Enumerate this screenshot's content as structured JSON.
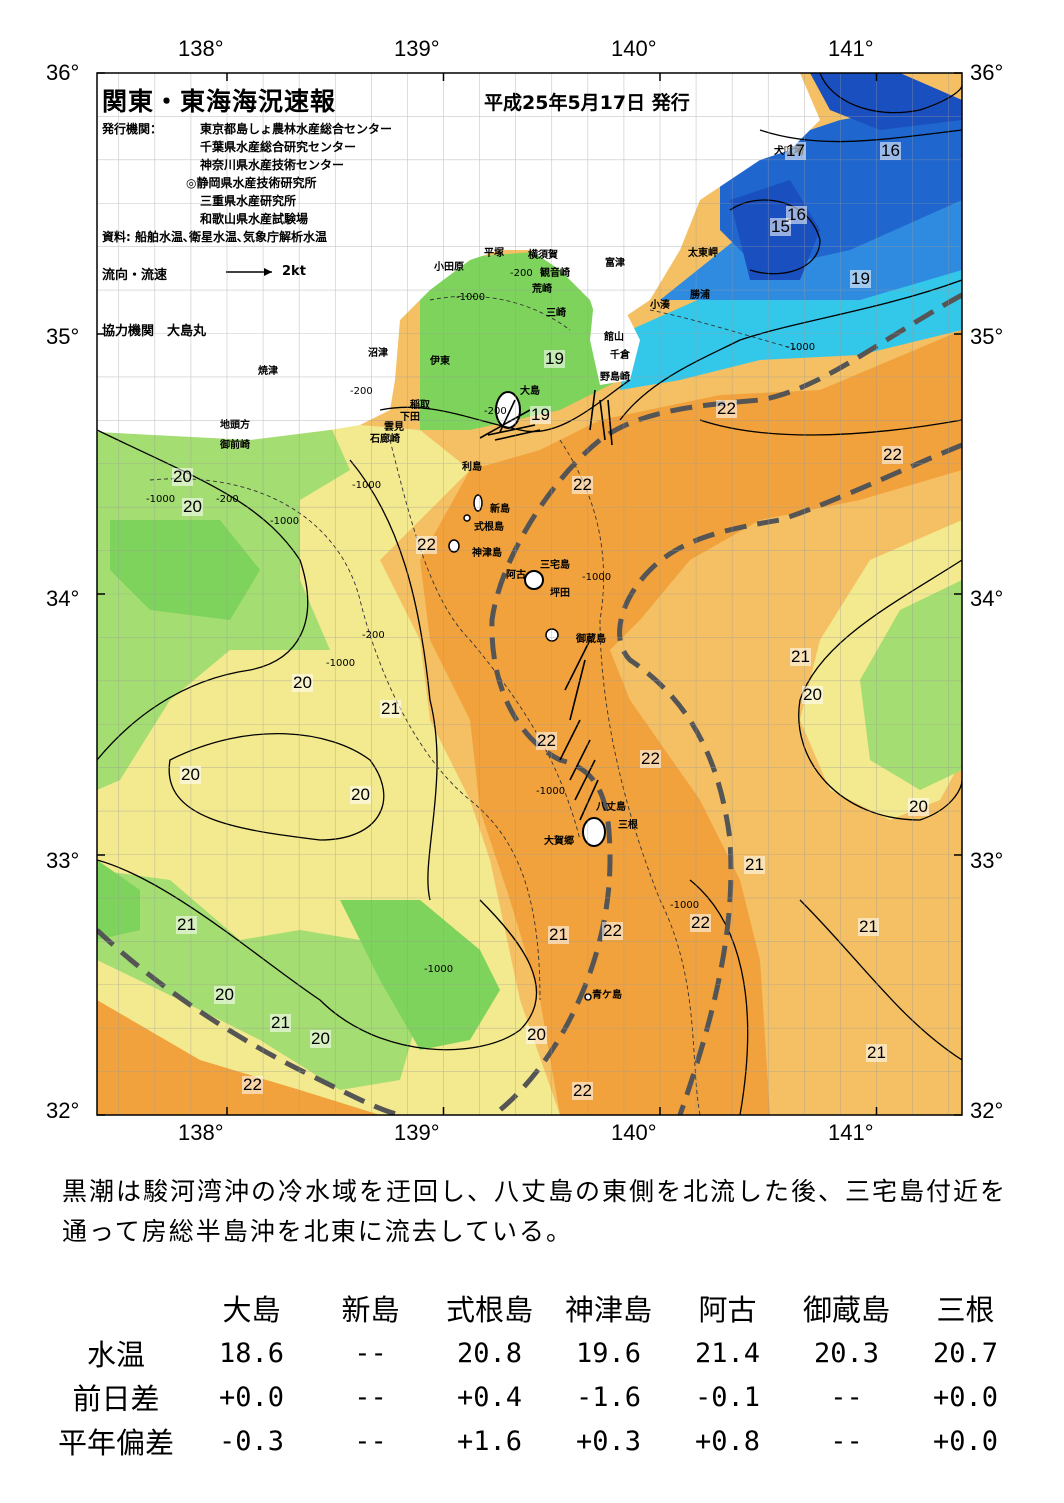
{
  "header": {
    "title": "関東・東海海況速報",
    "issue_date": "平成25年5月17日 発行",
    "issuer_label": "発行機関：",
    "issuers": [
      "東京都島しょ農林水産総合センター",
      "千葉県水産総合研究センター",
      "神奈川県水産技術センター",
      "◎静岡県水産技術研究所",
      "三重県水産研究所",
      "和歌山県水産試験場"
    ],
    "source": "資料: 船舶水温､衛星水温､気象庁解析水温",
    "current_legend_label": "流向・流速",
    "current_legend_value": "2kt",
    "cooperation": "協力機関　大島丸"
  },
  "map": {
    "lon_labels": [
      "138°",
      "139°",
      "140°",
      "141°"
    ],
    "lat_labels": [
      "36°",
      "35°",
      "34°",
      "33°",
      "32°"
    ],
    "colors": {
      "cold_dark": "#1a4fc0",
      "cold": "#2f8be0",
      "cyan": "#33c8ea",
      "green": "#7ed35c",
      "lightgreen": "#a4dd72",
      "yellow": "#f3e98e",
      "lightorange": "#f5c063",
      "orange": "#f2a23c",
      "kuroshio_axis": "#555555",
      "land": "#ffffff"
    },
    "places": [
      "犬吠埼",
      "太東岬",
      "勝浦",
      "小湊",
      "富津",
      "横須賀",
      "観音崎",
      "平塚",
      "荒崎",
      "小田原",
      "三崎",
      "館山",
      "千倉",
      "野島崎",
      "大島",
      "沼津",
      "伊東",
      "焼津",
      "稲取",
      "下田",
      "雲見",
      "石廊崎",
      "地頭方",
      "御前崎",
      "利島",
      "新島",
      "式根島",
      "神津島",
      "三宅島",
      "阿古",
      "坪田",
      "御蔵島",
      "八丈島",
      "三根",
      "大賀郷",
      "青ケ島"
    ],
    "isotherm_labels": [
      "17",
      "16",
      "16",
      "15",
      "19",
      "19",
      "19",
      "22",
      "22",
      "22",
      "22",
      "20",
      "20",
      "21",
      "20",
      "21",
      "20",
      "20",
      "22",
      "22",
      "21",
      "20",
      "21",
      "22",
      "21",
      "20",
      "21",
      "20",
      "22",
      "22",
      "21",
      "20",
      "21",
      "20",
      "22"
    ],
    "depth_labels": [
      "-200",
      "-1000",
      "-200",
      "-1000",
      "-200",
      "-1000",
      "-1000",
      "-200",
      "-1000",
      "-1000",
      "-1000",
      "-1000",
      "-200",
      "-1000",
      "-1000"
    ]
  },
  "caption": "黒潮は駿河湾沖の冷水域を迂回し、八丈島の東側を北流した後、三宅島付近を通って房総半島沖を北東に流去している。",
  "table": {
    "columns": [
      "大島",
      "新島",
      "式根島",
      "神津島",
      "阿古",
      "御蔵島",
      "三根"
    ],
    "rows": [
      {
        "label": "水温",
        "values": [
          "18.6",
          "--",
          "20.8",
          "19.6",
          "21.4",
          "20.3",
          "20.7"
        ]
      },
      {
        "label": "前日差",
        "values": [
          "+0.0",
          "--",
          "+0.4",
          "-1.6",
          "-0.1",
          "--",
          "+0.0"
        ]
      },
      {
        "label": "平年偏差",
        "values": [
          "-0.3",
          "--",
          "+1.6",
          "+0.3",
          "+0.8",
          "--",
          "+0.0"
        ]
      }
    ]
  }
}
